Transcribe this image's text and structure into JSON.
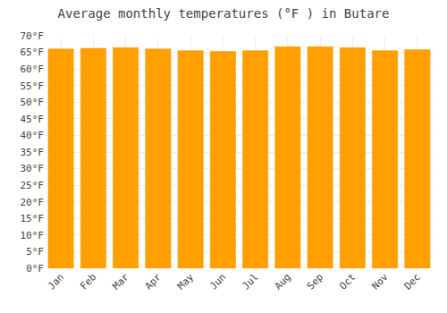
{
  "chart_data": {
    "type": "bar",
    "title": "Average monthly temperatures (°F ) in Butare",
    "categories": [
      "Jan",
      "Feb",
      "Mar",
      "Apr",
      "May",
      "Jun",
      "Jul",
      "Aug",
      "Sep",
      "Oct",
      "Nov",
      "Dec"
    ],
    "values": [
      66.0,
      66.2,
      66.4,
      66.0,
      65.5,
      65.3,
      65.5,
      66.7,
      66.7,
      66.4,
      65.5,
      65.8
    ],
    "color": "#FFA000",
    "ylim": [
      0,
      70
    ],
    "yticks": [
      {
        "value": 0,
        "label": "0°F"
      },
      {
        "value": 5,
        "label": "5°F"
      },
      {
        "value": 10,
        "label": "10°F"
      },
      {
        "value": 15,
        "label": "15°F"
      },
      {
        "value": 20,
        "label": "20°F"
      },
      {
        "value": 25,
        "label": "25°F"
      },
      {
        "value": 30,
        "label": "30°F"
      },
      {
        "value": 35,
        "label": "35°F"
      },
      {
        "value": 40,
        "label": "40°F"
      },
      {
        "value": 45,
        "label": "45°F"
      },
      {
        "value": 50,
        "label": "50°F"
      },
      {
        "value": 55,
        "label": "55°F"
      },
      {
        "value": 60,
        "label": "60°F"
      },
      {
        "value": 65,
        "label": "65°F"
      },
      {
        "value": 70,
        "label": "70°F"
      }
    ],
    "grid": true
  }
}
